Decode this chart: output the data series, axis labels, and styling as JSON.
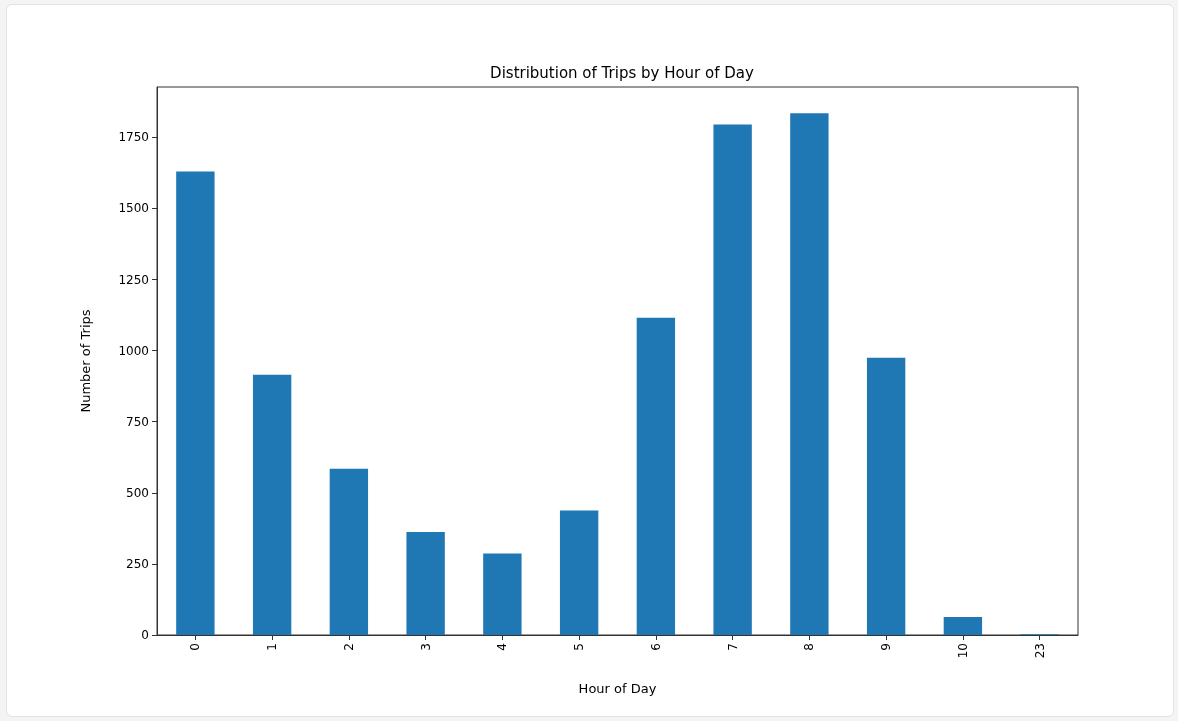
{
  "chart_data": {
    "type": "bar",
    "title": "Distribution of Trips by Hour of Day",
    "xlabel": "Hour of Day",
    "ylabel": "Number of Trips",
    "categories": [
      "0",
      "1",
      "2",
      "3",
      "4",
      "5",
      "6",
      "7",
      "8",
      "9",
      "10",
      "23"
    ],
    "values": [
      1630,
      915,
      585,
      362,
      287,
      438,
      1116,
      1795,
      1835,
      975,
      63,
      3
    ],
    "color": "#1f77b4",
    "ylim": [
      0,
      1927
    ],
    "yticks": [
      0,
      250,
      500,
      750,
      1000,
      1250,
      1500,
      1750
    ],
    "grid": false
  }
}
